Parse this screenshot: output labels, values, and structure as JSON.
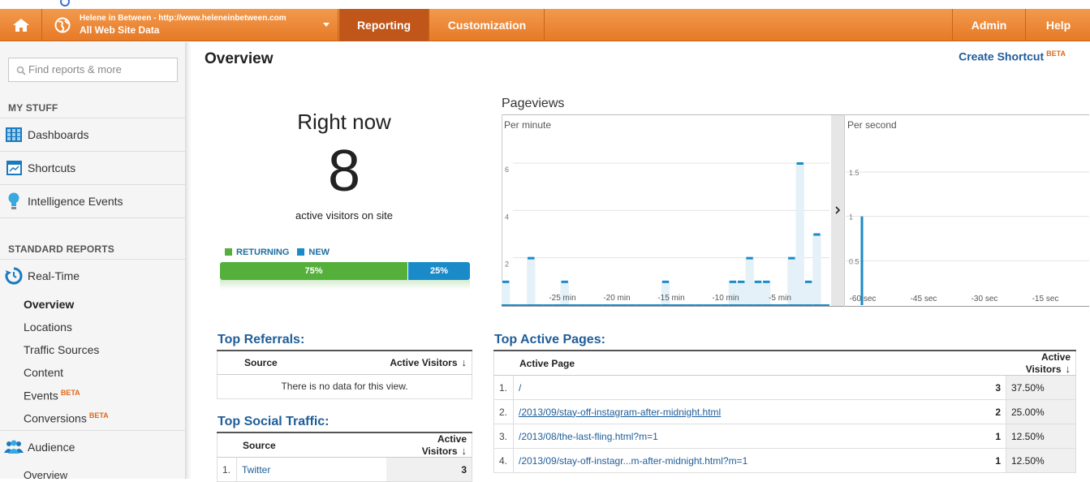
{
  "topbar": {
    "account_url": "Helene in Between - http://www.heleneinbetween.com",
    "property": "All Web Site Data",
    "tabs": [
      "Reporting",
      "Customization"
    ],
    "admin": "Admin",
    "help": "Help",
    "accent": "#e67a27"
  },
  "sidebar": {
    "search_placeholder": "Find reports & more",
    "my_stuff": "MY STUFF",
    "items": [
      "Dashboards",
      "Shortcuts",
      "Intelligence Events"
    ],
    "standard_reports": "STANDARD REPORTS",
    "realtime": "Real-Time",
    "realtime_sub": [
      "Overview",
      "Locations",
      "Traffic Sources",
      "Content",
      "Events",
      "Conversions"
    ],
    "beta": "BETA",
    "audience": "Audience",
    "audience_sub": [
      "Overview"
    ]
  },
  "main": {
    "title": "Overview",
    "create_shortcut": "Create Shortcut",
    "beta": "BETA"
  },
  "right_now": {
    "title": "Right now",
    "count": "8",
    "subtitle": "active visitors on site",
    "returning_label": "RETURNING",
    "new_label": "NEW",
    "returning_pct": "75%",
    "new_pct": "25%",
    "returning_share": 0.75,
    "returning_color": "#54b03a",
    "new_color": "#1a8bc8"
  },
  "chart_data": {
    "type": "bar",
    "title": "Pageviews",
    "panels": [
      {
        "name": "Per minute",
        "ylim": [
          0,
          6
        ],
        "yticks": [
          "6",
          "4",
          "2"
        ],
        "xticks": [
          "-25 min",
          "-20 min",
          "-15 min",
          "-10 min",
          "-5 min"
        ],
        "values": [
          1,
          0,
          0,
          2,
          0,
          0,
          0,
          1,
          0,
          0,
          0,
          0,
          0,
          0,
          0,
          0,
          0,
          0,
          0,
          1,
          0,
          0,
          0,
          0,
          0,
          0,
          0,
          1,
          1,
          2,
          1,
          1,
          0,
          0,
          2,
          6,
          1,
          3,
          0
        ]
      },
      {
        "name": "Per second",
        "ylim": [
          0,
          1.5
        ],
        "yticks": [
          "1.5",
          "1",
          "0.5"
        ],
        "xticks": [
          "-60 sec",
          "-45 sec",
          "-30 sec",
          "-15 sec"
        ],
        "spikes": [
          {
            "sec": -56,
            "value": 1
          }
        ]
      }
    ]
  },
  "top_referrals": {
    "title": "Top Referrals:",
    "col_source": "Source",
    "col_visitors": "Active Visitors",
    "empty": "There is no data for this view."
  },
  "top_social": {
    "title": "Top Social Traffic:",
    "col_source": "Source",
    "col_visitors": "Active Visitors",
    "rows": [
      {
        "num": "1.",
        "source": "Twitter",
        "visitors": "3"
      }
    ]
  },
  "top_pages": {
    "title": "Top Active Pages:",
    "col_page": "Active Page",
    "col_visitors": "Active Visitors",
    "rows": [
      {
        "num": "1.",
        "page": "/",
        "visitors": "3",
        "pct": "37.50%"
      },
      {
        "num": "2.",
        "page": "/2013/09/stay-off-instagram-after-midnight.html",
        "visitors": "2",
        "pct": "25.00%"
      },
      {
        "num": "3.",
        "page": "/2013/08/the-last-fling.html?m=1",
        "visitors": "1",
        "pct": "12.50%"
      },
      {
        "num": "4.",
        "page": "/2013/09/stay-off-instagr...m-after-midnight.html?m=1",
        "visitors": "1",
        "pct": "12.50%"
      }
    ]
  }
}
